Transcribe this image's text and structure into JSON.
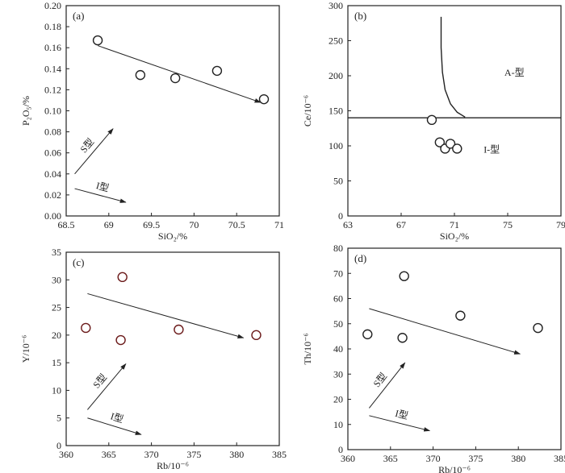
{
  "chart_data": [
    {
      "panel_label": "(a)",
      "type": "scatter",
      "xlabel": "SiO₂/%",
      "ylabel": "P₂O₅/%",
      "xlim": [
        68.5,
        71
      ],
      "ylim": [
        0,
        0.2
      ],
      "xticks": [
        68.5,
        69,
        69.5,
        70,
        70.5,
        71
      ],
      "yticks": [
        0,
        0.02,
        0.04,
        0.06,
        0.08,
        0.1,
        0.12,
        0.14,
        0.16,
        0.18,
        0.2
      ],
      "xtick_labels": [
        "68.5",
        "69",
        "69.5",
        "70",
        "70.5",
        "71"
      ],
      "ytick_labels": [
        "0.00",
        "0.02",
        "0.04",
        "0.06",
        "0.08",
        "0.10",
        "0.12",
        "0.14",
        "0.16",
        "0.18",
        "0.20"
      ],
      "points": [
        {
          "x": 68.87,
          "y": 0.167
        },
        {
          "x": 69.37,
          "y": 0.134
        },
        {
          "x": 69.78,
          "y": 0.131
        },
        {
          "x": 70.27,
          "y": 0.138
        },
        {
          "x": 70.82,
          "y": 0.111
        }
      ],
      "marker_color": "#222222",
      "trend_arrow": {
        "from": [
          68.87,
          0.162
        ],
        "to": [
          70.78,
          0.108
        ]
      },
      "arrows": [
        {
          "label": "S型",
          "from": [
            68.6,
            0.04
          ],
          "to": [
            69.05,
            0.083
          ]
        },
        {
          "label": "I型",
          "from": [
            68.6,
            0.026
          ],
          "to": [
            69.2,
            0.013
          ]
        }
      ]
    },
    {
      "panel_label": "(b)",
      "type": "scatter",
      "xlabel": "SiO₂/%",
      "ylabel": "Ce/10⁻⁶",
      "xlim": [
        63,
        79
      ],
      "ylim": [
        0,
        300
      ],
      "xticks": [
        63,
        67,
        71,
        75,
        79
      ],
      "yticks": [
        0,
        50,
        100,
        150,
        200,
        250,
        300
      ],
      "xtick_labels": [
        "63",
        "67",
        "71",
        "75",
        "79"
      ],
      "ytick_labels": [
        "0",
        "50",
        "100",
        "150",
        "200",
        "250",
        "300"
      ],
      "points": [
        {
          "x": 69.3,
          "y": 137
        },
        {
          "x": 69.9,
          "y": 105
        },
        {
          "x": 70.3,
          "y": 96
        },
        {
          "x": 70.7,
          "y": 103
        },
        {
          "x": 71.2,
          "y": 96
        }
      ],
      "marker_color": "#222222",
      "boundary_line_y": 140,
      "boundary_curve": [
        [
          70.0,
          284
        ],
        [
          70.0,
          240
        ],
        [
          70.1,
          205
        ],
        [
          70.3,
          180
        ],
        [
          70.7,
          160
        ],
        [
          71.2,
          148
        ],
        [
          71.8,
          141
        ]
      ],
      "region_labels": [
        {
          "label": "A-型",
          "x": 75.5,
          "y": 200
        },
        {
          "label": "I-型",
          "x": 73.8,
          "y": 90
        }
      ]
    },
    {
      "panel_label": "(c)",
      "type": "scatter",
      "xlabel": "Rb/10⁻⁶",
      "ylabel": "Y/10⁻⁶",
      "xlim": [
        360,
        385
      ],
      "ylim": [
        0,
        35
      ],
      "xticks": [
        360,
        365,
        370,
        375,
        380,
        385
      ],
      "yticks": [
        0,
        5,
        10,
        15,
        20,
        25,
        30,
        35
      ],
      "xtick_labels": [
        "360",
        "365",
        "370",
        "375",
        "380",
        "385"
      ],
      "ytick_labels": [
        "0",
        "5",
        "10",
        "15",
        "20",
        "25",
        "30",
        "35"
      ],
      "points": [
        {
          "x": 362.3,
          "y": 21.3
        },
        {
          "x": 366.4,
          "y": 19.1
        },
        {
          "x": 366.6,
          "y": 30.5
        },
        {
          "x": 373.2,
          "y": 21.0
        },
        {
          "x": 382.3,
          "y": 20.0
        }
      ],
      "marker_color": "#6b1a1a",
      "trend_arrow": {
        "from": [
          362.5,
          27.5
        ],
        "to": [
          380.8,
          19.5
        ]
      },
      "arrows": [
        {
          "label": "S型",
          "from": [
            362.5,
            6.5
          ],
          "to": [
            367,
            14.8
          ]
        },
        {
          "label": "I型",
          "from": [
            362.5,
            5.0
          ],
          "to": [
            368.8,
            2.0
          ]
        }
      ]
    },
    {
      "panel_label": "(d)",
      "type": "scatter",
      "xlabel": "Rb/10⁻⁶",
      "ylabel": "Th/10⁻⁶",
      "xlim": [
        360,
        385
      ],
      "ylim": [
        0,
        80
      ],
      "xticks": [
        360,
        365,
        370,
        375,
        380,
        385
      ],
      "yticks": [
        0,
        10,
        20,
        30,
        40,
        50,
        60,
        70,
        80
      ],
      "xtick_labels": [
        "360",
        "365",
        "370",
        "375",
        "380",
        "385"
      ],
      "ytick_labels": [
        "0",
        "10",
        "20",
        "30",
        "40",
        "50",
        "60",
        "70",
        "80"
      ],
      "points": [
        {
          "x": 362.3,
          "y": 45.8
        },
        {
          "x": 366.4,
          "y": 44.4
        },
        {
          "x": 366.6,
          "y": 68.9
        },
        {
          "x": 373.2,
          "y": 53.2
        },
        {
          "x": 382.3,
          "y": 48.3
        }
      ],
      "marker_color": "#222222",
      "trend_arrow": {
        "from": [
          362.5,
          56
        ],
        "to": [
          380.2,
          38
        ]
      },
      "arrows": [
        {
          "label": "S型",
          "from": [
            362.5,
            16.5
          ],
          "to": [
            366.7,
            34.5
          ]
        },
        {
          "label": "I型",
          "from": [
            362.5,
            13.5
          ],
          "to": [
            369.6,
            7.5
          ]
        }
      ]
    }
  ]
}
